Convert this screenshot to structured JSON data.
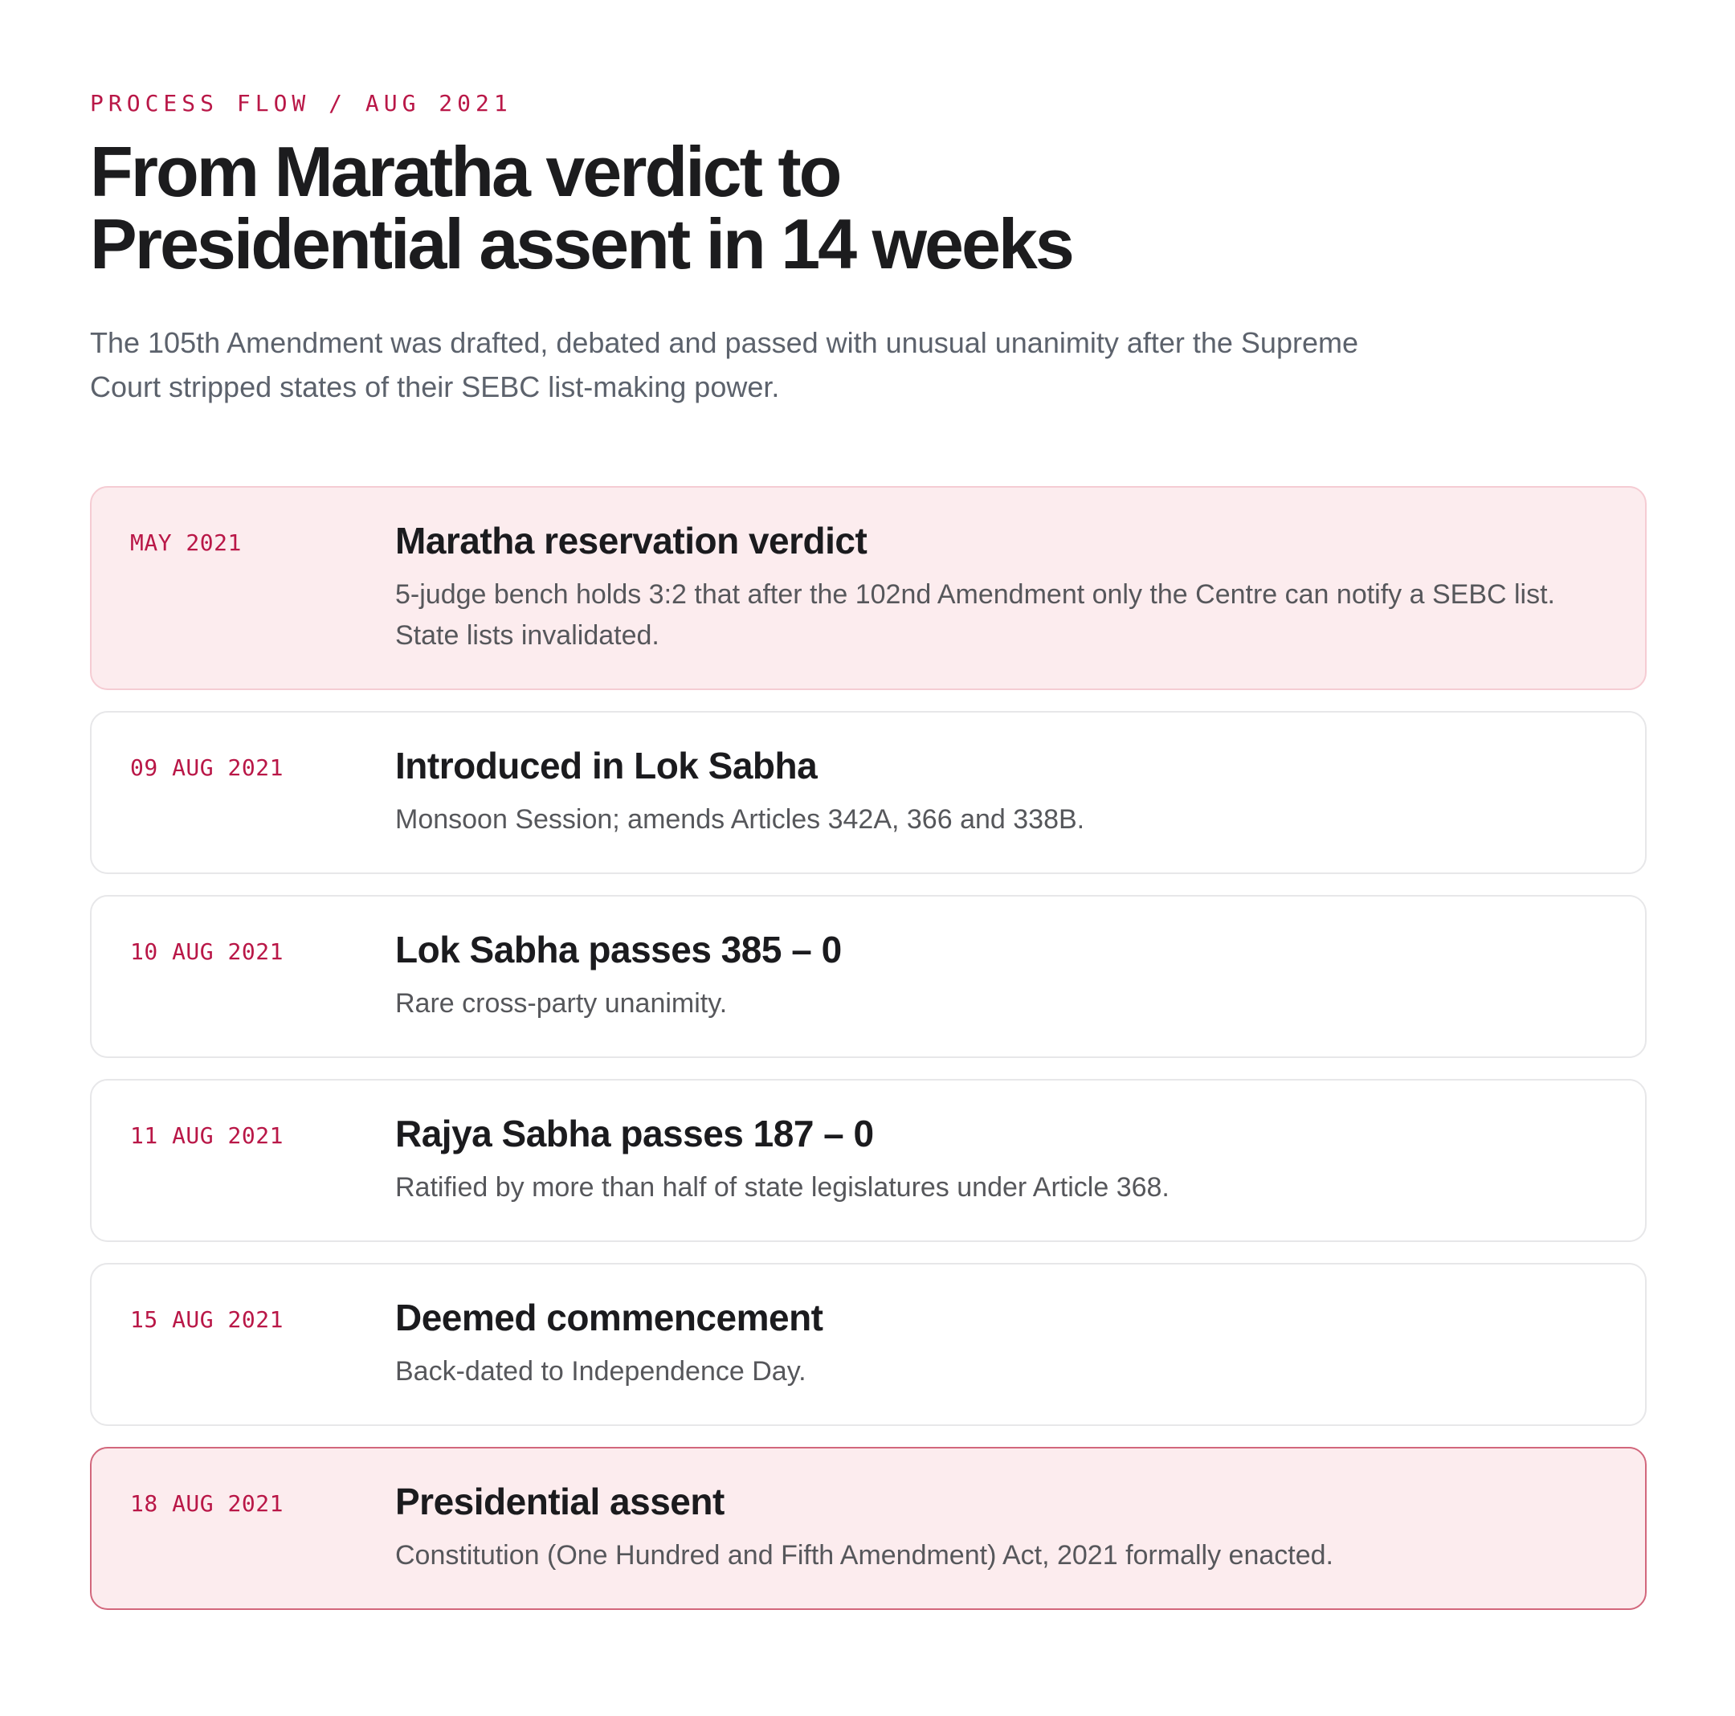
{
  "page": {
    "eyebrow": "PROCESS FLOW / AUG 2021",
    "title_line1": "From Maratha verdict to",
    "title_line2": "Presidential assent in 14 weeks",
    "subtitle": "The 105th Amendment was drafted, debated and passed with unusual unanimity after the Supreme Court stripped states of their SEBC list-making power."
  },
  "colors": {
    "accent_crimson": "#b91747",
    "soft_pink_fill": "#fcecee",
    "rose_border": "#d2677c",
    "neutral_card_border": "#e7e7e9",
    "headline_text": "#1c1c1e",
    "body_text": "#56575b"
  },
  "timeline": {
    "events": [
      {
        "date": "MAY 2021",
        "title": "Maratha reservation verdict",
        "body": "5-judge bench holds 3:2 that after the 102nd Amendment only the Centre can notify a SEBC list. State lists invalidated.",
        "variant": "highlight-soft"
      },
      {
        "date": "09 AUG 2021",
        "title": "Introduced in Lok Sabha",
        "body": "Monsoon Session; amends Articles 342A, 366 and 338B.",
        "variant": "default"
      },
      {
        "date": "10 AUG 2021",
        "title": "Lok Sabha passes 385 – 0",
        "body": "Rare cross-party unanimity.",
        "variant": "default"
      },
      {
        "date": "11 AUG 2021",
        "title": "Rajya Sabha passes 187 – 0",
        "body": "Ratified by more than half of state legislatures under Article 368.",
        "variant": "default"
      },
      {
        "date": "15 AUG 2021",
        "title": "Deemed commencement",
        "body": "Back-dated to Independence Day.",
        "variant": "default"
      },
      {
        "date": "18 AUG 2021",
        "title": "Presidential assent",
        "body": "Constitution (One Hundred and Fifth Amendment) Act, 2021 formally enacted.",
        "variant": "highlight-border"
      }
    ]
  }
}
